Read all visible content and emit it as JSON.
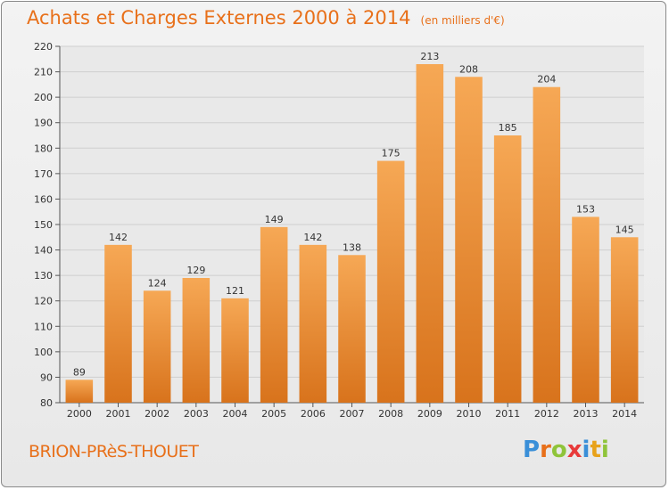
{
  "header": {
    "title": "Achats et Charges Externes 2000 à 2014",
    "subtitle": "(en milliers d'€)"
  },
  "footer": {
    "location": "BRION-PRèS-THOUET",
    "logo": "Proxiti",
    "logo_colors": [
      "#3a8fd8",
      "#e8701a",
      "#8fc43a",
      "#e83a3a",
      "#3a8fd8",
      "#e8a21a",
      "#8fc43a"
    ]
  },
  "colors": {
    "bar_light": "#f6a855",
    "bar_dark": "#d8731c",
    "accent": "#e8701a"
  },
  "chart_data": {
    "type": "bar",
    "categories": [
      "2000",
      "2001",
      "2002",
      "2003",
      "2004",
      "2005",
      "2006",
      "2007",
      "2008",
      "2009",
      "2010",
      "2011",
      "2012",
      "2013",
      "2014"
    ],
    "values": [
      89,
      142,
      124,
      129,
      121,
      149,
      142,
      138,
      175,
      213,
      208,
      185,
      204,
      153,
      145
    ],
    "ylim": [
      80,
      220
    ],
    "yticks": [
      80,
      90,
      100,
      110,
      120,
      130,
      140,
      150,
      160,
      170,
      180,
      190,
      200,
      210,
      220
    ],
    "grid": true,
    "title": "Achats et Charges Externes 2000 à 2014",
    "xlabel": "",
    "ylabel": ""
  }
}
